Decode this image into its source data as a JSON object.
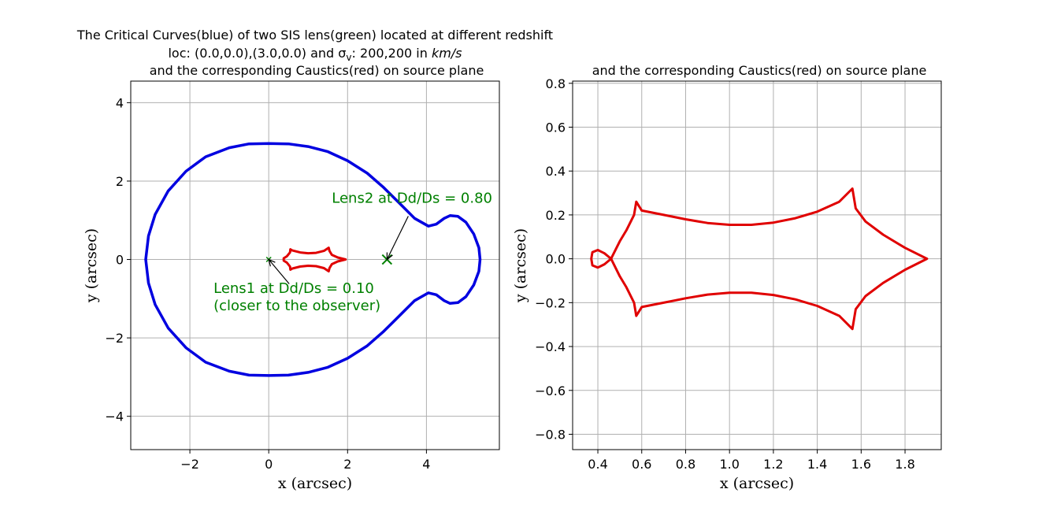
{
  "chart_data": [
    {
      "type": "line",
      "title_lines": [
        "The Critical Curves(blue) of two SIS lens(green) located at different redshift",
        "loc: (0.0,0.0),(3.0,0.0) and σ",
        "and the corresponding Caustics(red) on source plane"
      ],
      "title_sigma_sub": "v",
      "title_sigma_rest": ": 200,200 in ",
      "title_units": "km/s",
      "xlabel": "x (arcsec)",
      "ylabel": "y (arcsec)",
      "xlim": [
        -3.5,
        5.85
      ],
      "ylim": [
        -4.85,
        4.55
      ],
      "xticks": [
        -2,
        0,
        2,
        4
      ],
      "xtick_labels": [
        "−2",
        "0",
        "2",
        "4"
      ],
      "yticks": [
        -4,
        -2,
        0,
        2,
        4
      ],
      "ytick_labels": [
        "−4",
        "−2",
        "0",
        "2",
        "4"
      ],
      "grid": true,
      "colors": {
        "critical": "#0000e0",
        "caustic": "#e00000",
        "lens": "#008000",
        "annotation": "#008000"
      },
      "series": [
        {
          "name": "Critical Curves",
          "color": "#0000e0",
          "points": [
            [
              4.05,
              0.85
            ],
            [
              3.7,
              1.05
            ],
            [
              3.3,
              1.45
            ],
            [
              2.9,
              1.85
            ],
            [
              2.5,
              2.2
            ],
            [
              2.0,
              2.52
            ],
            [
              1.5,
              2.75
            ],
            [
              1.0,
              2.88
            ],
            [
              0.5,
              2.95
            ],
            [
              0.0,
              2.96
            ],
            [
              -0.5,
              2.95
            ],
            [
              -1.0,
              2.85
            ],
            [
              -1.6,
              2.62
            ],
            [
              -2.1,
              2.25
            ],
            [
              -2.55,
              1.75
            ],
            [
              -2.88,
              1.15
            ],
            [
              -3.05,
              0.6
            ],
            [
              -3.12,
              0.0
            ],
            [
              -3.05,
              -0.6
            ],
            [
              -2.88,
              -1.15
            ],
            [
              -2.55,
              -1.75
            ],
            [
              -2.1,
              -2.25
            ],
            [
              -1.6,
              -2.62
            ],
            [
              -1.0,
              -2.85
            ],
            [
              -0.5,
              -2.95
            ],
            [
              0.0,
              -2.96
            ],
            [
              0.5,
              -2.95
            ],
            [
              1.0,
              -2.88
            ],
            [
              1.5,
              -2.75
            ],
            [
              2.0,
              -2.52
            ],
            [
              2.5,
              -2.2
            ],
            [
              2.9,
              -1.85
            ],
            [
              3.3,
              -1.45
            ],
            [
              3.7,
              -1.05
            ],
            [
              4.05,
              -0.85
            ],
            [
              4.25,
              -0.9
            ],
            [
              4.45,
              -1.05
            ],
            [
              4.6,
              -1.12
            ],
            [
              4.8,
              -1.1
            ],
            [
              5.0,
              -0.95
            ],
            [
              5.2,
              -0.65
            ],
            [
              5.33,
              -0.3
            ],
            [
              5.36,
              0.0
            ],
            [
              5.33,
              0.3
            ],
            [
              5.2,
              0.65
            ],
            [
              5.0,
              0.95
            ],
            [
              4.8,
              1.1
            ],
            [
              4.6,
              1.12
            ],
            [
              4.45,
              1.05
            ],
            [
              4.25,
              0.9
            ],
            [
              4.05,
              0.85
            ]
          ]
        },
        {
          "name": "Caustics",
          "color": "#e00000",
          "points": [
            [
              1.95,
              0.0
            ],
            [
              1.75,
              0.05
            ],
            [
              1.6,
              0.12
            ],
            [
              1.54,
              0.22
            ],
            [
              1.52,
              0.3
            ],
            [
              1.4,
              0.22
            ],
            [
              1.2,
              0.17
            ],
            [
              1.0,
              0.16
            ],
            [
              0.8,
              0.18
            ],
            [
              0.6,
              0.23
            ],
            [
              0.55,
              0.26
            ],
            [
              0.54,
              0.18
            ],
            [
              0.46,
              0.08
            ],
            [
              0.38,
              0.03
            ],
            [
              0.38,
              -0.03
            ],
            [
              0.46,
              -0.08
            ],
            [
              0.54,
              -0.18
            ],
            [
              0.55,
              -0.26
            ],
            [
              0.6,
              -0.23
            ],
            [
              0.8,
              -0.18
            ],
            [
              1.0,
              -0.16
            ],
            [
              1.2,
              -0.17
            ],
            [
              1.4,
              -0.22
            ],
            [
              1.52,
              -0.3
            ],
            [
              1.54,
              -0.22
            ],
            [
              1.6,
              -0.12
            ],
            [
              1.75,
              -0.05
            ],
            [
              1.95,
              0.0
            ]
          ]
        }
      ],
      "lenses": [
        {
          "name": "Lens1",
          "x": 0.0,
          "y": 0.0,
          "marker": "x-small"
        },
        {
          "name": "Lens2",
          "x": 3.0,
          "y": 0.0,
          "marker": "x-large"
        }
      ],
      "annotations": [
        {
          "text": "Lens2 at Dd/Ds = 0.80",
          "text_x": 1.6,
          "text_y": 1.45,
          "point_x": 3.0,
          "point_y": 0.0
        },
        {
          "text": "Lens1 at Dd/Ds = 0.10",
          "text2": " (closer to the observer)",
          "text_x": -1.4,
          "text_y": -0.85,
          "point_x": 0.0,
          "point_y": 0.0
        }
      ]
    },
    {
      "type": "line",
      "title": "and the corresponding Caustics(red) on source plane",
      "xlabel": "x (arcsec)",
      "ylabel": "y (arcsec)",
      "xlim": [
        0.285,
        1.965
      ],
      "ylim": [
        -0.87,
        0.81
      ],
      "xticks": [
        0.4,
        0.6,
        0.8,
        1.0,
        1.2,
        1.4,
        1.6,
        1.8
      ],
      "xtick_labels": [
        "0.4",
        "0.6",
        "0.8",
        "1.0",
        "1.2",
        "1.4",
        "1.6",
        "1.8"
      ],
      "yticks": [
        -0.8,
        -0.6,
        -0.4,
        -0.2,
        0.0,
        0.2,
        0.4,
        0.6,
        0.8
      ],
      "ytick_labels": [
        "−0.8",
        "−0.6",
        "−0.4",
        "−0.2",
        "0.0",
        "0.2",
        "0.4",
        "0.6",
        "0.8"
      ],
      "grid": true,
      "series": [
        {
          "name": "Caustics",
          "color": "#e00000",
          "points": [
            [
              1.9,
              0.0
            ],
            [
              1.8,
              0.05
            ],
            [
              1.7,
              0.11
            ],
            [
              1.62,
              0.17
            ],
            [
              1.575,
              0.23
            ],
            [
              1.56,
              0.32
            ],
            [
              1.5,
              0.26
            ],
            [
              1.4,
              0.215
            ],
            [
              1.3,
              0.185
            ],
            [
              1.2,
              0.165
            ],
            [
              1.1,
              0.155
            ],
            [
              1.0,
              0.155
            ],
            [
              0.9,
              0.163
            ],
            [
              0.8,
              0.18
            ],
            [
              0.7,
              0.2
            ],
            [
              0.6,
              0.22
            ],
            [
              0.575,
              0.26
            ],
            [
              0.565,
              0.2
            ],
            [
              0.53,
              0.13
            ],
            [
              0.5,
              0.08
            ],
            [
              0.46,
              0.0
            ],
            [
              0.43,
              0.025
            ],
            [
              0.4,
              0.04
            ],
            [
              0.375,
              0.03
            ],
            [
              0.37,
              0.0
            ],
            [
              0.375,
              -0.03
            ],
            [
              0.4,
              -0.04
            ],
            [
              0.43,
              -0.025
            ],
            [
              0.46,
              0.0
            ],
            [
              0.5,
              -0.08
            ],
            [
              0.53,
              -0.13
            ],
            [
              0.565,
              -0.2
            ],
            [
              0.575,
              -0.26
            ],
            [
              0.6,
              -0.22
            ],
            [
              0.7,
              -0.2
            ],
            [
              0.8,
              -0.18
            ],
            [
              0.9,
              -0.163
            ],
            [
              1.0,
              -0.155
            ],
            [
              1.1,
              -0.155
            ],
            [
              1.2,
              -0.165
            ],
            [
              1.3,
              -0.185
            ],
            [
              1.4,
              -0.215
            ],
            [
              1.5,
              -0.26
            ],
            [
              1.56,
              -0.32
            ],
            [
              1.575,
              -0.23
            ],
            [
              1.62,
              -0.17
            ],
            [
              1.7,
              -0.11
            ],
            [
              1.8,
              -0.05
            ],
            [
              1.9,
              0.0
            ]
          ]
        }
      ]
    }
  ]
}
